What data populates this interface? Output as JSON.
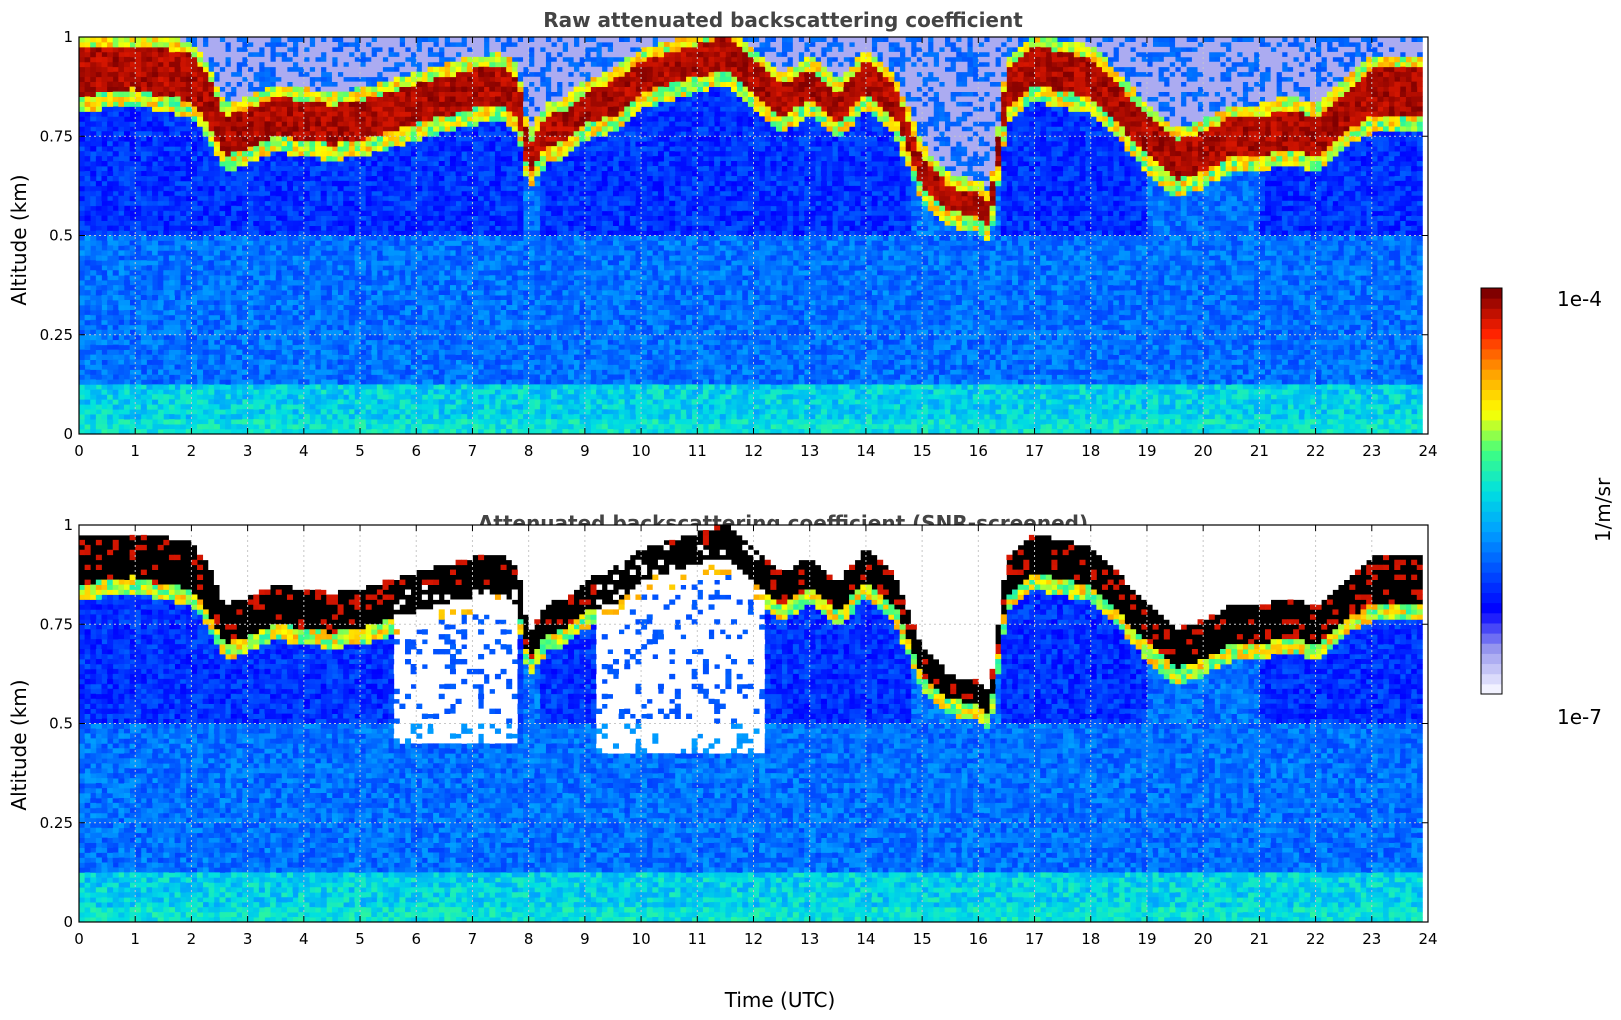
{
  "colors": {
    "colormap": [
      "#f2f2ff",
      "#9999ee",
      "#0000ff",
      "#0050ff",
      "#00a0ff",
      "#00e0e0",
      "#40ff80",
      "#ffff00",
      "#ffa000",
      "#ff2000",
      "#800000"
    ],
    "screened_saturation": "#000000",
    "grid": "#c8c8c8",
    "title_text": "#444444"
  },
  "chart_data": [
    {
      "type": "heatmap",
      "title": "Raw attenuated backscattering coefficient",
      "xlabel": "",
      "ylabel": "Altitude (km)",
      "xlim": [
        0,
        24
      ],
      "ylim": [
        0,
        1
      ],
      "xticks": [
        "0",
        "1",
        "2",
        "3",
        "4",
        "5",
        "6",
        "7",
        "8",
        "9",
        "10",
        "11",
        "12",
        "13",
        "14",
        "15",
        "16",
        "17",
        "18",
        "19",
        "20",
        "21",
        "22",
        "23",
        "24"
      ],
      "yticks": [
        "0",
        "0.25",
        "0.5",
        "0.75",
        "1"
      ],
      "grid": true,
      "colorbar": {
        "label": "1/m/sr",
        "min_label": "1e-7",
        "max_label": "1e-4",
        "scale": "log"
      },
      "cloud_base_km": {
        "x": [
          0,
          0.5,
          1,
          1.5,
          2,
          2.3,
          2.6,
          3,
          3.5,
          4,
          4.5,
          5,
          5.5,
          6,
          6.5,
          7,
          7.5,
          7.8,
          8,
          8.3,
          8.7,
          9,
          9.5,
          10,
          10.5,
          11,
          11.5,
          12,
          12.5,
          13,
          13.5,
          14,
          14.5,
          15,
          15.5,
          16,
          16.2,
          16.5,
          17,
          17.5,
          18,
          18.5,
          19,
          19.5,
          20,
          20.5,
          21,
          21.5,
          22,
          22.5,
          23,
          23.5,
          23.8
        ],
        "base": [
          0.85,
          0.86,
          0.87,
          0.85,
          0.84,
          0.78,
          0.7,
          0.72,
          0.75,
          0.74,
          0.73,
          0.74,
          0.76,
          0.78,
          0.8,
          0.82,
          0.83,
          0.8,
          0.65,
          0.72,
          0.74,
          0.78,
          0.8,
          0.86,
          0.88,
          0.9,
          0.92,
          0.86,
          0.8,
          0.84,
          0.78,
          0.86,
          0.8,
          0.62,
          0.56,
          0.55,
          0.52,
          0.82,
          0.88,
          0.86,
          0.85,
          0.78,
          0.7,
          0.64,
          0.66,
          0.7,
          0.7,
          0.72,
          0.7,
          0.76,
          0.8,
          0.8,
          0.8
        ],
        "thickness": [
          0.12,
          0.11,
          0.11,
          0.12,
          0.12,
          0.12,
          0.1,
          0.1,
          0.1,
          0.1,
          0.1,
          0.1,
          0.1,
          0.1,
          0.1,
          0.1,
          0.1,
          0.1,
          0.08,
          0.08,
          0.08,
          0.08,
          0.09,
          0.08,
          0.08,
          0.08,
          0.08,
          0.08,
          0.08,
          0.08,
          0.08,
          0.08,
          0.08,
          0.08,
          0.06,
          0.06,
          0.06,
          0.1,
          0.1,
          0.1,
          0.1,
          0.1,
          0.1,
          0.1,
          0.1,
          0.1,
          0.1,
          0.1,
          0.1,
          0.1,
          0.12,
          0.12,
          0.12
        ]
      },
      "data_end_hour": 23.85
    },
    {
      "type": "heatmap",
      "title": "Attenuated backscattering coefficient (SNR-screened)",
      "xlabel": "Time (UTC)",
      "ylabel": "Altitude (km)",
      "xlim": [
        0,
        24
      ],
      "ylim": [
        0,
        1
      ],
      "xticks": [
        "0",
        "1",
        "2",
        "3",
        "4",
        "5",
        "6",
        "7",
        "8",
        "9",
        "10",
        "11",
        "12",
        "13",
        "14",
        "15",
        "16",
        "17",
        "18",
        "19",
        "20",
        "21",
        "22",
        "23",
        "24"
      ],
      "yticks": [
        "0",
        "0.25",
        "0.5",
        "0.75",
        "1"
      ],
      "grid": true,
      "screened_regions_hours": [
        [
          5.6,
          7.8,
          0.45,
          0.85
        ],
        [
          9.2,
          12.2,
          0.42,
          0.95
        ]
      ],
      "data_end_hour": 23.85
    }
  ]
}
